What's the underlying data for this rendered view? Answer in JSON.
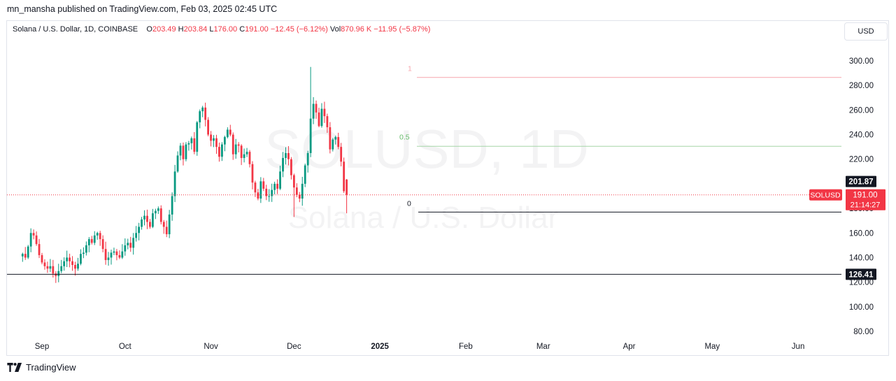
{
  "header": {
    "published": "mn_mansha published on TradingView.com, Feb 03, 2025 02:45 UTC"
  },
  "legend": {
    "symbol": "Solana / U.S. Dollar, 1D, COINBASE",
    "o_label": "O",
    "o": "203.49",
    "h_label": "H",
    "h": "203.84",
    "l_label": "L",
    "l": "176.00",
    "c_label": "C",
    "c": "191.00",
    "change": "−12.45 (−6.12%)",
    "vol_label": "Vol",
    "vol": "870.96 K",
    "vol_change": "−11.95 (−5.87%)"
  },
  "currency_button": "USD",
  "watermark": {
    "symbol": "SOLUSD, 1D",
    "name": "Solana / U.S. Dollar"
  },
  "footer": {
    "brand": "TradingView"
  },
  "colors": {
    "up": "#089981",
    "down": "#f23645",
    "fib_1": "#f7a6ad",
    "fib_05": "#a5d6a7"
  },
  "chart_data": {
    "type": "candlestick",
    "y_axis": {
      "min": 70,
      "max": 315,
      "ticks": [
        300,
        280,
        260,
        240,
        220,
        200,
        180,
        160,
        140,
        120,
        100,
        80
      ],
      "tick_labels": [
        "300.00",
        "280.00",
        "260.00",
        "240.00",
        "220.00",
        "200.00",
        "180.00",
        "160.00",
        "140.00",
        "120.00",
        "100.00",
        "80.00"
      ]
    },
    "x_axis": {
      "labels": [
        {
          "text": "Sep",
          "date": "2024-09-01",
          "bold": false
        },
        {
          "text": "Oct",
          "date": "2024-10-01",
          "bold": false
        },
        {
          "text": "Nov",
          "date": "2024-11-01",
          "bold": false
        },
        {
          "text": "Dec",
          "date": "2024-12-01",
          "bold": false
        },
        {
          "text": "2025",
          "date": "2025-01-01",
          "bold": true
        },
        {
          "text": "Feb",
          "date": "2025-02-01",
          "bold": false
        },
        {
          "text": "Mar",
          "date": "2025-03-01",
          "bold": false
        },
        {
          "text": "Apr",
          "date": "2025-04-01",
          "bold": false
        },
        {
          "text": "May",
          "date": "2025-05-01",
          "bold": false
        },
        {
          "text": "Jun",
          "date": "2025-06-01",
          "bold": false
        }
      ]
    },
    "closes": [
      143,
      140,
      149,
      160,
      158,
      151,
      142,
      136,
      133,
      131,
      133,
      127,
      125,
      129,
      133,
      137,
      140,
      137,
      134,
      131,
      135,
      143,
      144,
      150,
      155,
      152,
      158,
      160,
      155,
      147,
      138,
      140,
      144,
      145,
      142,
      140,
      145,
      150,
      152,
      148,
      156,
      160,
      165,
      171,
      174,
      169,
      165,
      176,
      178,
      180,
      169,
      165,
      159,
      175,
      190,
      210,
      223,
      231,
      220,
      232,
      233,
      237,
      226,
      250,
      259,
      262,
      252,
      240,
      235,
      237,
      230,
      222,
      232,
      238,
      244,
      240,
      224,
      232,
      231,
      221,
      224,
      226,
      216,
      201,
      193,
      188,
      202,
      196,
      190,
      190,
      195,
      200,
      196,
      210,
      221,
      225,
      220,
      207,
      197,
      191,
      188,
      200,
      215,
      225,
      253,
      265,
      258,
      247,
      261,
      255,
      246,
      228,
      236,
      238,
      230,
      218,
      194,
      191
    ],
    "start_date": "2024-08-25",
    "last": {
      "open": 203.49,
      "high": 203.84,
      "low": 176.0,
      "close": 191.0
    },
    "horizontal_lines": [
      {
        "price": 177.0,
        "label": ""
      },
      {
        "price": 126.41,
        "label": "126.41"
      }
    ],
    "fib": [
      {
        "level": "1",
        "price": 286.5
      },
      {
        "level": "0.5",
        "price": 230.5
      },
      {
        "level": "0",
        "price": 177.0
      }
    ],
    "price_tags": [
      {
        "price": 201.87,
        "label": "201.87",
        "kind": "dark"
      },
      {
        "price": 191.0,
        "label": "191.00",
        "countdown": "21:14:27",
        "ticker": "SOLUSD",
        "kind": "current"
      }
    ]
  }
}
